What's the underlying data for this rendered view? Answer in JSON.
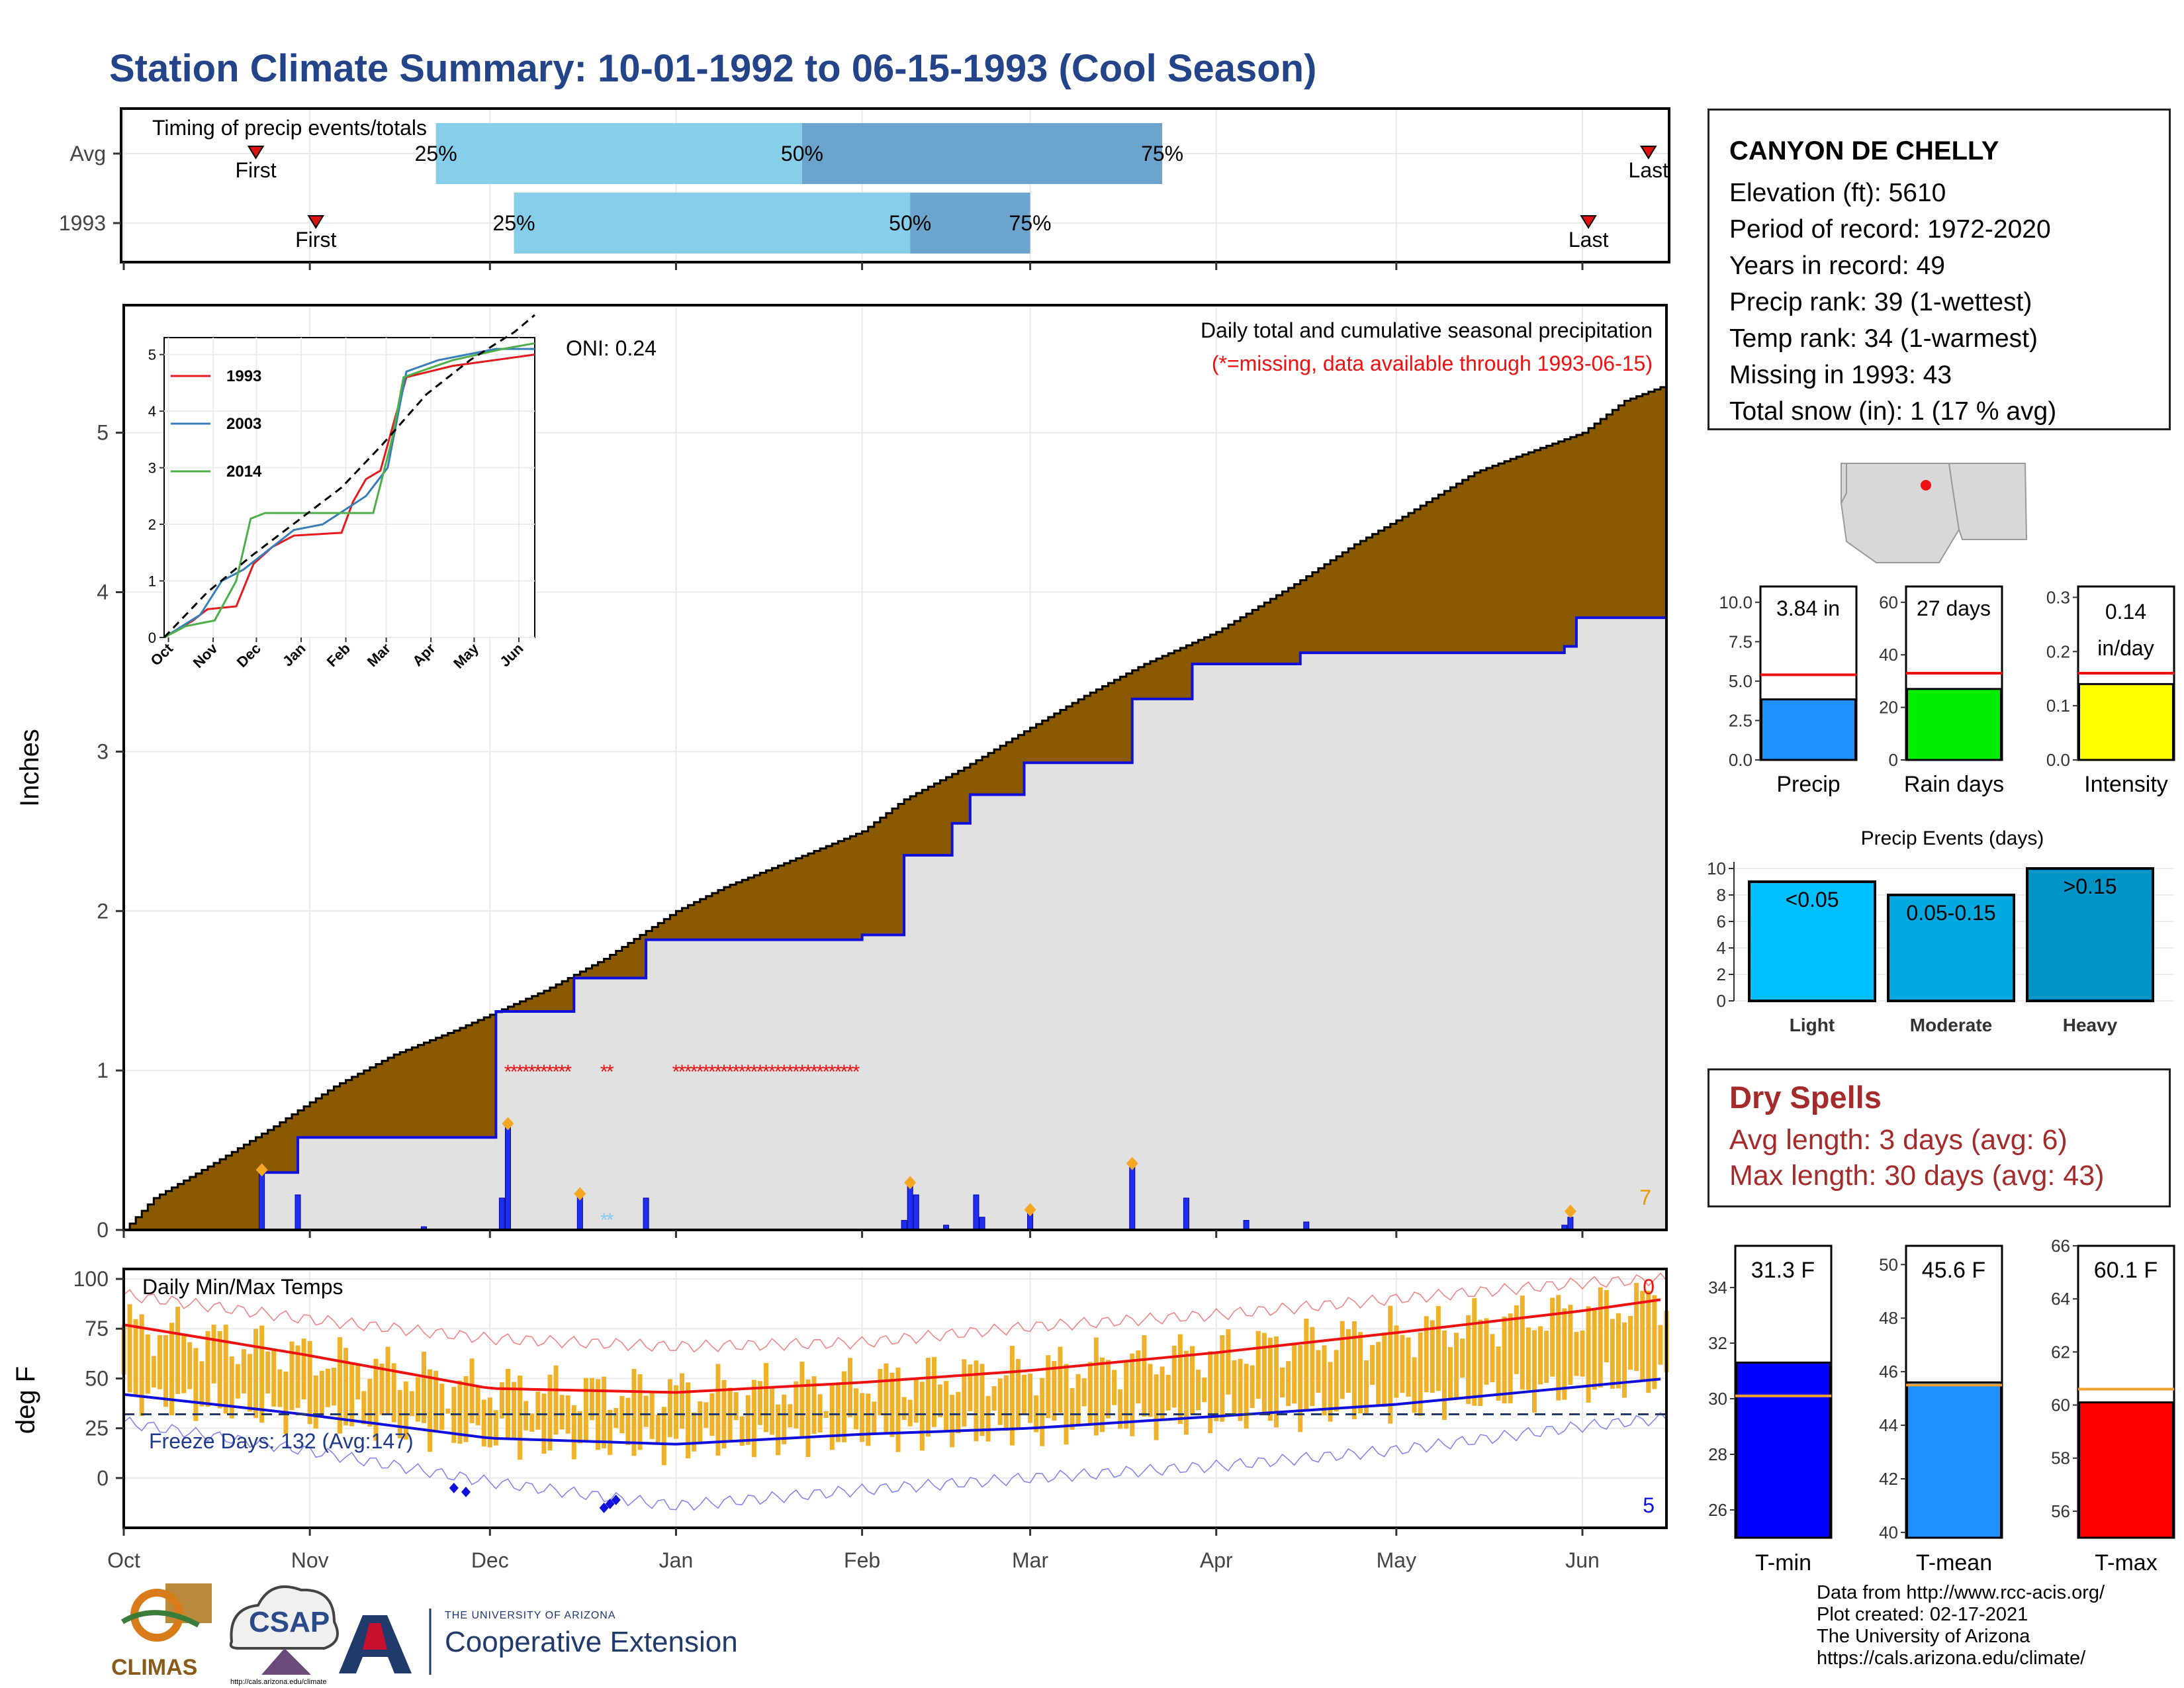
{
  "title": "Station Climate Summary: 10-01-1992 to 06-15-1993 (Cool Season)",
  "station": {
    "name": "CANYON DE CHELLY",
    "lines": [
      "Elevation (ft): 5610",
      "Period of record: 1972-2020",
      "Years in record: 49",
      "Precip rank: 39 (1-wettest)",
      "Temp rank: 34 (1-warmest)",
      "Missing in 1993: 43",
      "Total snow (in): 1 (17 % avg)"
    ]
  },
  "dry_spells": {
    "title": "Dry Spells",
    "avg": "Avg length: 3 days (avg: 6)",
    "max": "Max length: 30 days (avg: 43)"
  },
  "credits": [
    "Data from http://www.rcc-acis.org/",
    "Plot created: 02-17-2021",
    "The University of Arizona",
    "https://cals.arizona.edu/climate/"
  ],
  "logos": {
    "climas": "CLIMAS",
    "csap": "CSAP",
    "csap_url": "http://cals.arizona.edu/climate",
    "ua_small": "THE UNIVERSITY OF ARIZONA",
    "ua_big": "Cooperative Extension"
  },
  "colors": {
    "cumulative_fill": "#8b5a00",
    "cumulative_1993": "#1010dd",
    "panel_gray": "#e1e1e1",
    "bar_temp": "#efb12a",
    "quartile_light": "#87ceeb",
    "quartile_dark": "#6ba4cc",
    "missing_red": "#ee1111"
  },
  "chart_data": [
    {
      "id": "timing",
      "type": "bar",
      "title": "Timing of precip events/totals",
      "rows": [
        {
          "label": "Avg",
          "first_day": 22,
          "last_day": 254,
          "q25_day": 52,
          "q50_day": 113,
          "q75_day": 173
        },
        {
          "label": "1993",
          "first_day": 32,
          "last_day": 244,
          "q25_day": 65,
          "q50_day": 131,
          "q75_day": 151
        }
      ],
      "marker_labels": {
        "first": "First",
        "last": "Last",
        "q25": "25%",
        "q50": "50%",
        "q75": "75%"
      }
    },
    {
      "id": "precip",
      "type": "area",
      "title": "Daily total and cumulative seasonal precipitation",
      "subtitle": "(*=missing, data available through 1993-06-15)",
      "oni": "ONI: 0.24",
      "ylabel": "Inches",
      "ylim": [
        0,
        5.8
      ],
      "yticks": [
        0,
        1,
        2,
        3,
        4,
        5
      ],
      "xlim_days": [
        0,
        257
      ],
      "month_ticks": [
        {
          "label": "Oct",
          "day": 0
        },
        {
          "label": "Nov",
          "day": 31
        },
        {
          "label": "Dec",
          "day": 61
        },
        {
          "label": "Jan",
          "day": 92
        },
        {
          "label": "Feb",
          "day": 123
        },
        {
          "label": "Mar",
          "day": 151
        },
        {
          "label": "Apr",
          "day": 182
        },
        {
          "label": "May",
          "day": 212
        },
        {
          "label": "Jun",
          "day": 243
        }
      ],
      "avg_cumulative": [
        [
          0,
          0
        ],
        [
          5,
          0.2
        ],
        [
          15,
          0.42
        ],
        [
          25,
          0.65
        ],
        [
          35,
          0.9
        ],
        [
          45,
          1.1
        ],
        [
          55,
          1.25
        ],
        [
          61,
          1.35
        ],
        [
          70,
          1.5
        ],
        [
          80,
          1.7
        ],
        [
          92,
          2.0
        ],
        [
          100,
          2.15
        ],
        [
          110,
          2.3
        ],
        [
          123,
          2.5
        ],
        [
          130,
          2.7
        ],
        [
          140,
          2.9
        ],
        [
          151,
          3.15
        ],
        [
          160,
          3.35
        ],
        [
          170,
          3.55
        ],
        [
          182,
          3.75
        ],
        [
          195,
          4.05
        ],
        [
          205,
          4.3
        ],
        [
          212,
          4.45
        ],
        [
          225,
          4.75
        ],
        [
          232,
          4.85
        ],
        [
          243,
          5.0
        ],
        [
          250,
          5.2
        ],
        [
          257,
          5.3
        ]
      ],
      "cumulative_1993": [
        [
          0,
          0
        ],
        [
          23,
          0
        ],
        [
          23,
          0.36
        ],
        [
          29,
          0.36
        ],
        [
          29,
          0.58
        ],
        [
          62,
          0.58
        ],
        [
          62,
          1.37
        ],
        [
          75,
          1.37
        ],
        [
          75,
          1.58
        ],
        [
          87,
          1.58
        ],
        [
          87,
          1.82
        ],
        [
          123,
          1.82
        ],
        [
          123,
          1.85
        ],
        [
          130,
          1.85
        ],
        [
          130,
          2.35
        ],
        [
          138,
          2.35
        ],
        [
          138,
          2.55
        ],
        [
          141,
          2.55
        ],
        [
          141,
          2.73
        ],
        [
          150,
          2.73
        ],
        [
          150,
          2.93
        ],
        [
          168,
          2.93
        ],
        [
          168,
          3.33
        ],
        [
          178,
          3.33
        ],
        [
          178,
          3.55
        ],
        [
          196,
          3.55
        ],
        [
          196,
          3.62
        ],
        [
          240,
          3.62
        ],
        [
          240,
          3.66
        ],
        [
          242,
          3.66
        ],
        [
          242,
          3.84
        ],
        [
          257,
          3.84
        ]
      ],
      "daily_bars": [
        [
          23,
          0.36
        ],
        [
          29,
          0.22
        ],
        [
          50,
          0.02
        ],
        [
          63,
          0.2
        ],
        [
          64,
          0.65
        ],
        [
          76,
          0.21
        ],
        [
          87,
          0.2
        ],
        [
          130,
          0.06
        ],
        [
          131,
          0.28
        ],
        [
          132,
          0.22
        ],
        [
          137,
          0.03
        ],
        [
          142,
          0.22
        ],
        [
          143,
          0.08
        ],
        [
          151,
          0.12
        ],
        [
          168,
          0.4
        ],
        [
          177,
          0.2
        ],
        [
          187,
          0.06
        ],
        [
          197,
          0.05
        ],
        [
          240,
          0.03
        ],
        [
          241,
          0.08
        ]
      ],
      "event_markers": [
        [
          23,
          0.36
        ],
        [
          64,
          0.65
        ],
        [
          76,
          0.21
        ],
        [
          131,
          0.28
        ],
        [
          151,
          0.11
        ],
        [
          168,
          0.4
        ],
        [
          241,
          0.1
        ]
      ],
      "missing_days_red": [
        64,
        65,
        66,
        67,
        68,
        69,
        70,
        71,
        72,
        73,
        74,
        80,
        81,
        92,
        93,
        94,
        95,
        96,
        97,
        98,
        99,
        100,
        101,
        102,
        103,
        104,
        105,
        106,
        107,
        108,
        109,
        110,
        111,
        112,
        113,
        114,
        115,
        116,
        117,
        118,
        119,
        120,
        121,
        122
      ],
      "missing_days_blue": [
        80,
        81
      ],
      "corner_count": "7",
      "inset": {
        "type": "line",
        "ylim": [
          0,
          5.3
        ],
        "yticks": [
          0,
          1,
          2,
          3,
          4,
          5
        ],
        "months": [
          "Oct",
          "Nov",
          "Dec",
          "Jan",
          "Feb",
          "Mar",
          "Apr",
          "May",
          "Jun"
        ],
        "series": [
          {
            "name": "1993",
            "color": "#e41a1c",
            "points": [
              [
                0,
                0
              ],
              [
                20,
                0.3
              ],
              [
                30,
                0.5
              ],
              [
                50,
                0.55
              ],
              [
                62,
                1.3
              ],
              [
                75,
                1.6
              ],
              [
                90,
                1.8
              ],
              [
                123,
                1.85
              ],
              [
                131,
                2.4
              ],
              [
                140,
                2.8
              ],
              [
                150,
                2.95
              ],
              [
                168,
                4.6
              ],
              [
                200,
                4.8
              ],
              [
                257,
                5.0
              ]
            ]
          },
          {
            "name": "2003",
            "color": "#377eb8",
            "points": [
              [
                0,
                0
              ],
              [
                25,
                0.4
              ],
              [
                40,
                1.0
              ],
              [
                55,
                1.2
              ],
              [
                70,
                1.5
              ],
              [
                90,
                1.9
              ],
              [
                110,
                2.0
              ],
              [
                140,
                2.5
              ],
              [
                155,
                3.0
              ],
              [
                168,
                4.7
              ],
              [
                190,
                4.9
              ],
              [
                230,
                5.1
              ],
              [
                257,
                5.1
              ]
            ]
          },
          {
            "name": "2014",
            "color": "#4daf4a",
            "points": [
              [
                0,
                0
              ],
              [
                15,
                0.2
              ],
              [
                35,
                0.3
              ],
              [
                50,
                1.0
              ],
              [
                60,
                2.1
              ],
              [
                70,
                2.2
              ],
              [
                110,
                2.2
              ],
              [
                145,
                2.2
              ],
              [
                158,
                3.5
              ],
              [
                166,
                4.6
              ],
              [
                200,
                4.9
              ],
              [
                235,
                5.1
              ],
              [
                257,
                5.2
              ]
            ]
          },
          {
            "name": "",
            "color": "#000000",
            "dashed": true,
            "points": [
              [
                0,
                0
              ],
              [
                30,
                0.8
              ],
              [
                61,
                1.45
              ],
              [
                92,
                2.05
              ],
              [
                123,
                2.65
              ],
              [
                151,
                3.4
              ],
              [
                182,
                4.3
              ],
              [
                212,
                4.9
              ],
              [
                243,
                5.4
              ],
              [
                257,
                5.7
              ]
            ]
          }
        ]
      }
    },
    {
      "id": "temps",
      "type": "bar",
      "title": "Daily Min/Max Temps",
      "ylabel": "deg F",
      "ylim": [
        -25,
        105
      ],
      "yticks": [
        0,
        25,
        50,
        75,
        100
      ],
      "freeze_label": "Freeze Days: 132 (Avg:147)",
      "freeze_line": 32,
      "corner_top": "0",
      "corner_bottom": "5",
      "month_ticks": [
        {
          "label": "Oct",
          "day": 0
        },
        {
          "label": "Nov",
          "day": 31
        },
        {
          "label": "Dec",
          "day": 61
        },
        {
          "label": "Jan",
          "day": 92
        },
        {
          "label": "Feb",
          "day": 123
        },
        {
          "label": "Mar",
          "day": 151
        },
        {
          "label": "Apr",
          "day": 182
        },
        {
          "label": "May",
          "day": 212
        },
        {
          "label": "Jun",
          "day": 243
        }
      ],
      "avg_max": [
        [
          0,
          77
        ],
        [
          30,
          62
        ],
        [
          61,
          45
        ],
        [
          92,
          43
        ],
        [
          123,
          48
        ],
        [
          151,
          54
        ],
        [
          182,
          63
        ],
        [
          212,
          73
        ],
        [
          243,
          84
        ],
        [
          257,
          90
        ]
      ],
      "avg_min": [
        [
          0,
          42
        ],
        [
          30,
          32
        ],
        [
          61,
          20
        ],
        [
          92,
          17
        ],
        [
          123,
          22
        ],
        [
          151,
          25
        ],
        [
          182,
          31
        ],
        [
          212,
          37
        ],
        [
          243,
          46
        ],
        [
          257,
          50
        ]
      ],
      "record_max": [
        [
          0,
          92
        ],
        [
          30,
          80
        ],
        [
          61,
          70
        ],
        [
          92,
          66
        ],
        [
          123,
          68
        ],
        [
          151,
          76
        ],
        [
          182,
          82
        ],
        [
          212,
          90
        ],
        [
          243,
          98
        ],
        [
          257,
          100
        ]
      ],
      "record_min": [
        [
          0,
          28
        ],
        [
          30,
          14
        ],
        [
          61,
          -2
        ],
        [
          92,
          -14
        ],
        [
          123,
          -6
        ],
        [
          151,
          0
        ],
        [
          182,
          6
        ],
        [
          212,
          14
        ],
        [
          243,
          26
        ],
        [
          257,
          30
        ]
      ],
      "cold_markers": [
        [
          55,
          -5
        ],
        [
          57,
          -7
        ],
        [
          80,
          -15
        ],
        [
          81,
          -13
        ],
        [
          82,
          -11
        ]
      ]
    },
    {
      "id": "precip_gauges",
      "type": "bar",
      "charts": [
        {
          "label": "Precip",
          "value": 3.84,
          "value_text": "3.84 in",
          "avg": 5.4,
          "ylim": [
            0,
            11
          ],
          "yticks": [
            0.0,
            2.5,
            5.0,
            7.5,
            10.0
          ],
          "tick_text": [
            "0.0",
            "2.5",
            "5.0",
            "7.5",
            "10.0"
          ],
          "color": "#1e90ff"
        },
        {
          "label": "Rain days",
          "value": 27,
          "value_text": "27 days",
          "avg": 33,
          "ylim": [
            0,
            66
          ],
          "yticks": [
            0,
            20,
            40,
            60
          ],
          "tick_text": [
            "0",
            "20",
            "40",
            "60"
          ],
          "color": "#00ee00"
        },
        {
          "label": "Intensity",
          "value": 0.14,
          "value_text": "0.14 in/day",
          "avg": 0.16,
          "ylim": [
            0,
            0.32
          ],
          "yticks": [
            0.0,
            0.1,
            0.2,
            0.3
          ],
          "tick_text": [
            "0.0",
            "0.1",
            "0.2",
            "0.3"
          ],
          "color": "#ffff00"
        }
      ]
    },
    {
      "id": "precip_events",
      "type": "bar",
      "title": "Precip Events (days)",
      "categories": [
        "Light",
        "Moderate",
        "Heavy"
      ],
      "values": [
        9,
        8,
        10
      ],
      "bar_labels": [
        "<0.05",
        "0.05-0.15",
        ">0.15"
      ],
      "colors": [
        "#00bfff",
        "#00a8e0",
        "#0094c6"
      ],
      "ylim": [
        0,
        10.5
      ],
      "yticks": [
        0,
        2,
        4,
        6,
        8,
        10
      ]
    },
    {
      "id": "temp_gauges",
      "type": "bar",
      "charts": [
        {
          "label": "T-min",
          "value": 31.3,
          "value_text": "31.3 F",
          "avg": 30.1,
          "ylim": [
            25,
            35.5
          ],
          "yticks": [
            26,
            28,
            30,
            32,
            34
          ],
          "color": "#0000ff"
        },
        {
          "label": "T-mean",
          "value": 45.6,
          "value_text": "45.6 F",
          "avg": 45.5,
          "ylim": [
            39.8,
            50.7
          ],
          "yticks": [
            40,
            42,
            44,
            46,
            48,
            50
          ],
          "color": "#1e90ff"
        },
        {
          "label": "T-max",
          "value": 60.1,
          "value_text": "60.1 F",
          "avg": 60.6,
          "ylim": [
            55,
            66
          ],
          "yticks": [
            56,
            58,
            60,
            62,
            64,
            66
          ],
          "color": "#ff0000"
        }
      ]
    }
  ]
}
